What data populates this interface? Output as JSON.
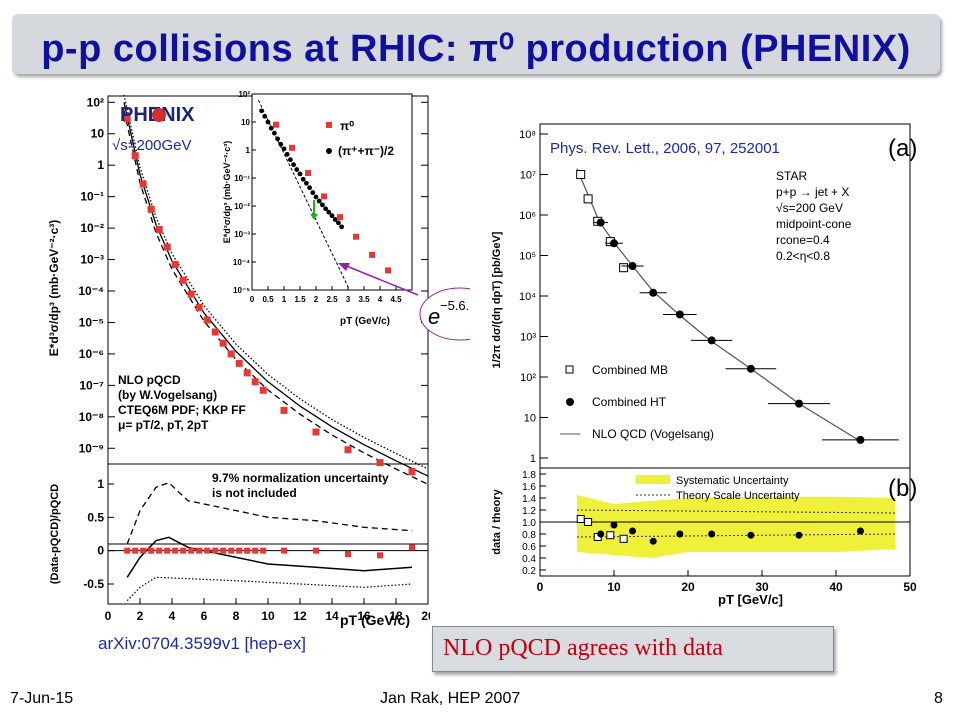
{
  "slide": {
    "title": "p-p collisions at RHIC: π⁰ production (PHENIX)",
    "footer_date": "7-Jun-15",
    "footer_author": "Jan Rak, HEP 2007",
    "footer_page": "8",
    "ref_left": "arXiv:0704.3599v1 [hep-ex]",
    "ref_right": "Phys. Rev. Lett., 2006, 97, 252001",
    "conclusion": "NLO pQCD agrees with data",
    "exp_formula": "e",
    "exp_power": "−5.6."
  },
  "chart_data": [
    {
      "type": "scatter",
      "logo": "PHENIX",
      "energy_label": "√s=200GeV",
      "ylabel": "E*d³σ/dp³ (mb·GeV⁻²·c³)",
      "y_ticks": [
        "10²",
        "10",
        "1",
        "10⁻¹",
        "10⁻²",
        "10⁻³",
        "10⁻⁴",
        "10⁻⁵",
        "10⁻⁶",
        "10⁻⁷",
        "10⁻⁸",
        "10⁻⁹"
      ],
      "yrange_log10": [
        -9.5,
        2.2
      ],
      "xrange": [
        0,
        20
      ],
      "legend": [
        "NLO pQCD",
        "(by W.Vogelsang)",
        "CTEQ6M PDF; KKP FF",
        "μ= pT/2, pT, 2pT"
      ],
      "series": [
        {
          "name": "π⁰",
          "x": [
            1.2,
            1.7,
            2.2,
            2.7,
            3.2,
            3.7,
            4.2,
            4.7,
            5.2,
            5.7,
            6.2,
            6.7,
            7.2,
            7.7,
            8.2,
            8.7,
            9.2,
            9.7,
            11,
            13,
            15,
            17,
            19
          ],
          "y": [
            30,
            2,
            0.25,
            0.04,
            0.009,
            0.0025,
            0.0007,
            0.00022,
            8e-05,
            3e-05,
            1.2e-05,
            5e-06,
            2.2e-06,
            1e-06,
            5e-07,
            2.5e-07,
            1.3e-07,
            7e-08,
            1.6e-08,
            3.3e-09,
            9e-10,
            3.5e-10,
            1.8e-10
          ]
        }
      ],
      "curves": [
        {
          "name": "NLO μ=pT",
          "x": [
            1,
            2,
            3,
            4,
            6,
            8,
            10,
            12,
            14,
            16,
            18,
            20
          ],
          "y": [
            100,
            0.5,
            0.013,
            0.0009,
            2e-05,
            1.2e-06,
            1.3e-07,
            2.2e-08,
            4.8e-09,
            1.3e-09,
            4e-10,
            1.3e-10
          ]
        }
      ]
    },
    {
      "type": "scatter",
      "ylabel": "E*d³σ/dp³ (mb·GeV⁻²·c³)",
      "xlabel": "pT (GeV/c)",
      "x_ticks": [
        "0",
        "0.5",
        "1",
        "1.5",
        "2",
        "2.5",
        "3",
        "3.5",
        "4",
        "4.5"
      ],
      "y_ticks": [
        "10²",
        "10",
        "1",
        "10⁻¹",
        "10⁻²",
        "10⁻³",
        "10⁻⁴",
        "10⁻⁵"
      ],
      "xrange": [
        0,
        5
      ],
      "yrange_log10": [
        -5,
        2
      ],
      "series": [
        {
          "name": "π⁰",
          "x": [
            0.75,
            1.25,
            1.75,
            2.25,
            2.75,
            3.25,
            3.75,
            4.25
          ],
          "y": [
            8,
            1.2,
            0.15,
            0.022,
            0.004,
            0.0008,
            0.00018,
            5e-05
          ]
        },
        {
          "name": "(π⁺+π⁻)/2",
          "x": [
            0.3,
            0.4,
            0.5,
            0.6,
            0.7,
            0.8,
            0.9,
            1.0,
            1.1,
            1.2,
            1.3,
            1.4,
            1.5,
            1.6,
            1.7,
            1.8,
            1.9,
            2.0,
            2.1,
            2.2,
            2.3,
            2.4,
            2.5,
            2.6,
            2.7,
            2.8
          ],
          "y": [
            25,
            16,
            10,
            6,
            4,
            2.5,
            1.6,
            1.1,
            0.7,
            0.45,
            0.3,
            0.2,
            0.14,
            0.09,
            0.065,
            0.045,
            0.03,
            0.021,
            0.015,
            0.011,
            0.008,
            0.006,
            0.0045,
            0.0033,
            0.0025,
            0.0018
          ]
        }
      ]
    },
    {
      "type": "scatter",
      "ylabel": "(Data-pQCD)/pQCD",
      "xlabel": "pT (GeV/c)",
      "x_ticks": [
        "0",
        "2",
        "4",
        "6",
        "8",
        "10",
        "12",
        "14",
        "16",
        "18",
        "20"
      ],
      "y_ticks": [
        "1",
        "0.5",
        "0",
        "-0.5"
      ],
      "xrange": [
        0,
        20
      ],
      "ylim": [
        -0.8,
        1.3
      ],
      "annotation": [
        "9.7% normalization uncertainty",
        "is not included"
      ],
      "series": [
        {
          "name": "π⁰",
          "x": [
            1.2,
            1.7,
            2.2,
            2.7,
            3.2,
            3.7,
            4.2,
            4.7,
            5.2,
            5.7,
            6.2,
            6.7,
            7.2,
            7.7,
            8.2,
            8.7,
            9.2,
            9.7,
            11,
            13,
            15,
            17,
            19
          ],
          "y": [
            0,
            0,
            0,
            0,
            0,
            0,
            0,
            0,
            0,
            0,
            0,
            0,
            0,
            0,
            0,
            0,
            0,
            0,
            0,
            0,
            -0.05,
            -0.07,
            0.05
          ]
        }
      ]
    },
    {
      "type": "scatter",
      "panel_label": "(a)",
      "ylabel": "1/2π dσ/(dη dpT) [pb/GeV]",
      "y_ticks": [
        "10⁸",
        "10⁷",
        "10⁶",
        "10⁵",
        "10⁴",
        "10³",
        "10²",
        "10",
        "1"
      ],
      "yrange_log10": [
        0,
        8
      ],
      "xrange": [
        0,
        50
      ],
      "info": [
        "STAR",
        "p+p → jet + X",
        "√s=200  GeV",
        "midpoint-cone",
        "rcone=0.4",
        "0.2<η<0.8"
      ],
      "legend": [
        "Combined MB",
        "Combined HT",
        "NLO QCD (Vogelsang)"
      ],
      "series": [
        {
          "name": "Combined MB",
          "x": [
            5.5,
            6.5,
            7.8,
            9.5,
            11.3
          ],
          "y": [
            10000000,
            2500000,
            700000,
            220000,
            50000
          ]
        },
        {
          "name": "Combined HT",
          "x": [
            8.2,
            10,
            12.5,
            15.3,
            18.9,
            23.2,
            28.5,
            35,
            43.3
          ],
          "y": [
            650000,
            200000,
            55000,
            12000,
            3500,
            800,
            160,
            22,
            2.8
          ]
        }
      ]
    },
    {
      "type": "scatter",
      "panel_label": "(b)",
      "ylabel": "data / theory",
      "xlabel": "pT [GeV/c]",
      "x_ticks": [
        "0",
        "10",
        "20",
        "30",
        "40",
        "50"
      ],
      "y_ticks": [
        "1.8",
        "1.6",
        "1.4",
        "1.2",
        "1.0",
        "0.8",
        "0.6",
        "0.4",
        "0.2"
      ],
      "xrange": [
        0,
        50
      ],
      "ylim": [
        0.1,
        1.9
      ],
      "legend": [
        "Systematic Uncertainty",
        "Theory Scale Uncertainty"
      ],
      "series": [
        {
          "name": "Combined MB",
          "x": [
            5.5,
            6.5,
            7.8,
            9.5,
            11.3
          ],
          "y": [
            1.05,
            1.0,
            0.75,
            0.78,
            0.72
          ]
        },
        {
          "name": "Combined HT",
          "x": [
            8.2,
            10,
            12.5,
            15.3,
            18.9,
            23.2,
            28.5,
            35,
            43.3
          ],
          "y": [
            0.8,
            0.95,
            0.85,
            0.68,
            0.8,
            0.8,
            0.78,
            0.78,
            0.85
          ]
        }
      ]
    }
  ]
}
